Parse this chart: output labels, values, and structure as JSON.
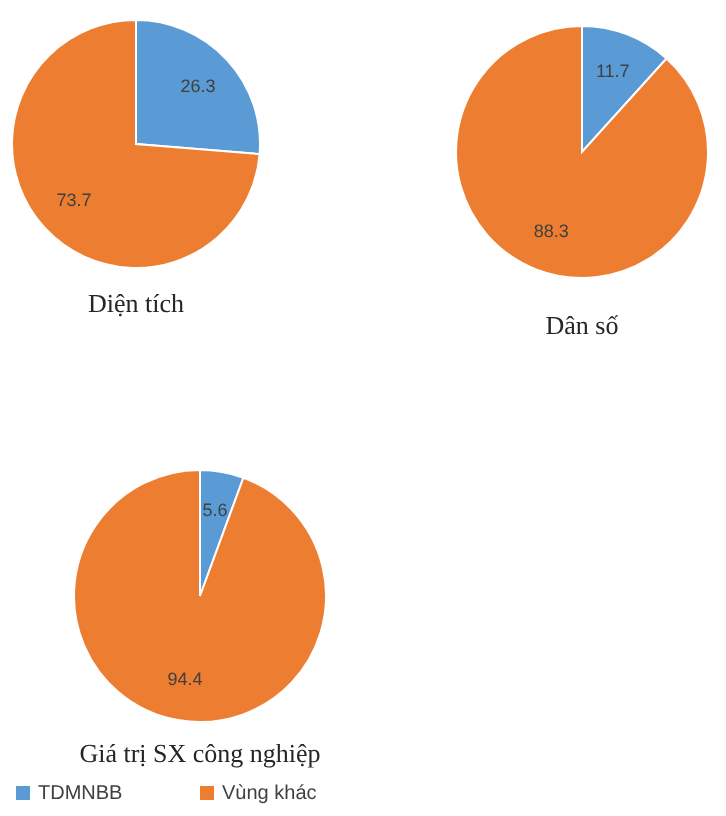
{
  "chart_data": [
    {
      "type": "pie",
      "title": "Diện tích",
      "categories": [
        "TDMNBB",
        "Vùng khác"
      ],
      "values": [
        26.3,
        73.7
      ],
      "colors": [
        "#5b9bd5",
        "#ed7d31"
      ],
      "data_labels": true,
      "legend": "bottom"
    },
    {
      "type": "pie",
      "title": "Dân số",
      "values": [
        11.7,
        88.3
      ],
      "colors": [
        "#5b9bd5",
        "#ed7d31"
      ],
      "data_labels": true
    },
    {
      "type": "pie",
      "title": "Giá trị SX công nghiệp",
      "values": [
        5.6,
        94.4
      ],
      "colors": [
        "#5b9bd5",
        "#ed7d31"
      ],
      "data_labels": true
    }
  ]
}
